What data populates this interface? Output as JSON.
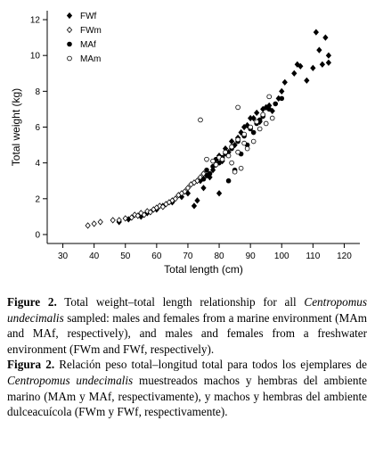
{
  "chart_data": {
    "type": "scatter",
    "xlabel": "Total length (cm)",
    "ylabel": "Total weight (kg)",
    "xlim": [
      25,
      125
    ],
    "ylim": [
      -0.5,
      12.5
    ],
    "xticks": [
      "30",
      "40",
      "50",
      "60",
      "70",
      "80",
      "90",
      "100",
      "110",
      "120"
    ],
    "yticks": [
      "0",
      "2",
      "4",
      "6",
      "8",
      "10",
      "12"
    ],
    "legend_position": "top-left",
    "grid": false,
    "series": [
      {
        "name": "FWf",
        "marker": "filled-diamond",
        "color": "#000000",
        "points": [
          [
            108,
            8.6
          ],
          [
            110,
            9.3
          ],
          [
            111,
            11.3
          ],
          [
            112,
            10.3
          ],
          [
            113,
            9.5
          ],
          [
            114,
            11
          ],
          [
            115,
            10
          ],
          [
            115,
            9.6
          ],
          [
            104,
            9
          ],
          [
            105,
            9.5
          ],
          [
            106,
            9.4
          ],
          [
            101,
            8.5
          ],
          [
            100,
            8
          ],
          [
            99,
            7.6
          ],
          [
            96,
            7.2
          ],
          [
            94,
            7
          ],
          [
            92,
            6.8
          ],
          [
            90,
            6.5
          ],
          [
            89,
            6.1
          ],
          [
            88,
            6
          ],
          [
            86,
            5.4
          ],
          [
            84,
            5.2
          ],
          [
            82,
            4.8
          ],
          [
            80,
            4.4
          ],
          [
            78,
            3.6
          ],
          [
            76,
            3.3
          ],
          [
            74,
            3
          ],
          [
            70,
            2.3
          ],
          [
            68,
            2.1
          ],
          [
            65,
            1.8
          ],
          [
            62,
            1.6
          ],
          [
            60,
            1.4
          ],
          [
            57,
            1.2
          ],
          [
            55,
            1
          ],
          [
            51,
            0.85
          ],
          [
            48,
            0.7
          ],
          [
            72,
            1.6
          ],
          [
            73,
            1.9
          ],
          [
            75,
            2.6
          ],
          [
            77,
            3.2
          ],
          [
            79,
            3.9
          ],
          [
            81,
            4.1
          ],
          [
            83,
            4.6
          ],
          [
            85,
            5
          ],
          [
            87,
            5.7
          ],
          [
            91,
            6.5
          ],
          [
            93,
            6.3
          ],
          [
            95,
            7.1
          ],
          [
            97,
            6.9
          ],
          [
            80,
            2.3
          ]
        ]
      },
      {
        "name": "FWm",
        "marker": "open-diamond",
        "color": "#000000",
        "points": [
          [
            38,
            0.5
          ],
          [
            40,
            0.6
          ],
          [
            42,
            0.7
          ],
          [
            46,
            0.8
          ],
          [
            50,
            0.9
          ],
          [
            53,
            1.1
          ],
          [
            55,
            1.2
          ],
          [
            57,
            1.3
          ],
          [
            59,
            1.4
          ],
          [
            61,
            1.6
          ],
          [
            63,
            1.7
          ],
          [
            65,
            1.9
          ],
          [
            67,
            2.2
          ],
          [
            69,
            2.4
          ],
          [
            71,
            2.8
          ],
          [
            73,
            3
          ],
          [
            75,
            3.4
          ],
          [
            60,
            1.5
          ],
          [
            56,
            1.1
          ],
          [
            52,
            0.95
          ],
          [
            64,
            1.8
          ],
          [
            66,
            2
          ],
          [
            70,
            2.6
          ],
          [
            72,
            2.9
          ],
          [
            58,
            1.25
          ],
          [
            62,
            1.55
          ],
          [
            68,
            2.3
          ],
          [
            74,
            3.2
          ],
          [
            54,
            1.05
          ],
          [
            48,
            0.8
          ]
        ]
      },
      {
        "name": "MAf",
        "marker": "filled-circle",
        "color": "#000000",
        "points": [
          [
            76,
            3.6
          ],
          [
            78,
            3.8
          ],
          [
            80,
            4
          ],
          [
            82,
            4.5
          ],
          [
            84,
            4.8
          ],
          [
            86,
            5.2
          ],
          [
            88,
            5.5
          ],
          [
            90,
            5.9
          ],
          [
            92,
            6.2
          ],
          [
            94,
            6.6
          ],
          [
            96,
            7
          ],
          [
            98,
            7.3
          ],
          [
            100,
            7.6
          ],
          [
            83,
            3
          ],
          [
            85,
            3.6
          ],
          [
            87,
            4.5
          ],
          [
            89,
            5
          ],
          [
            91,
            5.7
          ],
          [
            79,
            4.2
          ],
          [
            81,
            4.3
          ],
          [
            93,
            6.4
          ],
          [
            77,
            3.4
          ],
          [
            75,
            3.1
          ]
        ]
      },
      {
        "name": "MAm",
        "marker": "open-circle",
        "color": "#000000",
        "points": [
          [
            74,
            6.4
          ],
          [
            86,
            7.1
          ],
          [
            96,
            7.7
          ],
          [
            76,
            4.2
          ],
          [
            78,
            4.1
          ],
          [
            80,
            4.3
          ],
          [
            82,
            4.6
          ],
          [
            84,
            4.9
          ],
          [
            86,
            5.3
          ],
          [
            88,
            5.6
          ],
          [
            90,
            6
          ],
          [
            92,
            6.3
          ],
          [
            94,
            6.7
          ],
          [
            85,
            3.5
          ],
          [
            87,
            3.7
          ],
          [
            83,
            4.4
          ],
          [
            89,
            4.8
          ],
          [
            91,
            5.2
          ],
          [
            79,
            3.9
          ],
          [
            81,
            4.2
          ],
          [
            93,
            5.9
          ],
          [
            95,
            6.2
          ],
          [
            97,
            6.5
          ],
          [
            84,
            4
          ],
          [
            86,
            4.6
          ],
          [
            88,
            5.1
          ]
        ]
      }
    ]
  },
  "caption": {
    "en_label": "Figure 2.",
    "en_text_1": " Total weight–total length relationship for all ",
    "en_species": "Centropomus undecimalis",
    "en_text_2": " sampled: males and females from a marine environment (MAm and MAf, respectively), and males and females from a freshwater environment (FWm and FWf, respectively).",
    "es_label": "Figura 2.",
    "es_text_1": " Relación peso total–longitud total para todos los ejemplares de ",
    "es_species": "Centropomus undecimalis",
    "es_text_2": " muestreados machos y hembras del ambiente marino (MAm y MAf, respectivamente), y machos y hembras del ambiente dulceacuícola (FWm y FWf, respectivamente)."
  }
}
